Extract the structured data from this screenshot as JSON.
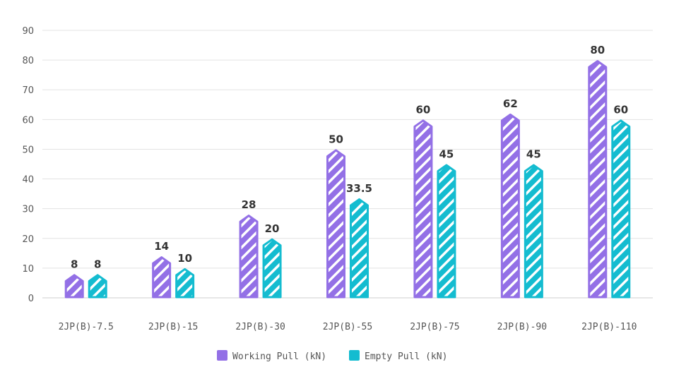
{
  "chart_data": {
    "type": "bar",
    "categories": [
      "2JP(B)-7.5",
      "2JP(B)-15",
      "2JP(B)-30",
      "2JP(B)-55",
      "2JP(B)-75",
      "2JP(B)-90",
      "2JP(B)-110"
    ],
    "series": [
      {
        "name": "Working Pull (kN)",
        "color": "#9370e6",
        "values": [
          8,
          14,
          28,
          50,
          60,
          62,
          80
        ],
        "labels": [
          "8",
          "14",
          "28",
          "50",
          "60",
          "62",
          "80"
        ]
      },
      {
        "name": "Empty Pull (kN)",
        "color": "#14bcd0",
        "values": [
          8,
          10,
          20,
          33.5,
          45,
          45,
          60
        ],
        "labels": [
          "8",
          "10",
          "20",
          "33.5",
          "45",
          "45",
          "60"
        ]
      }
    ],
    "ylim": [
      0,
      90
    ],
    "yticks": [
      "0",
      "10",
      "20",
      "30",
      "40",
      "50",
      "60",
      "70",
      "80",
      "90"
    ],
    "grid": true,
    "legend_position": "bottom-center",
    "bar_style": "hatched-pointed"
  }
}
